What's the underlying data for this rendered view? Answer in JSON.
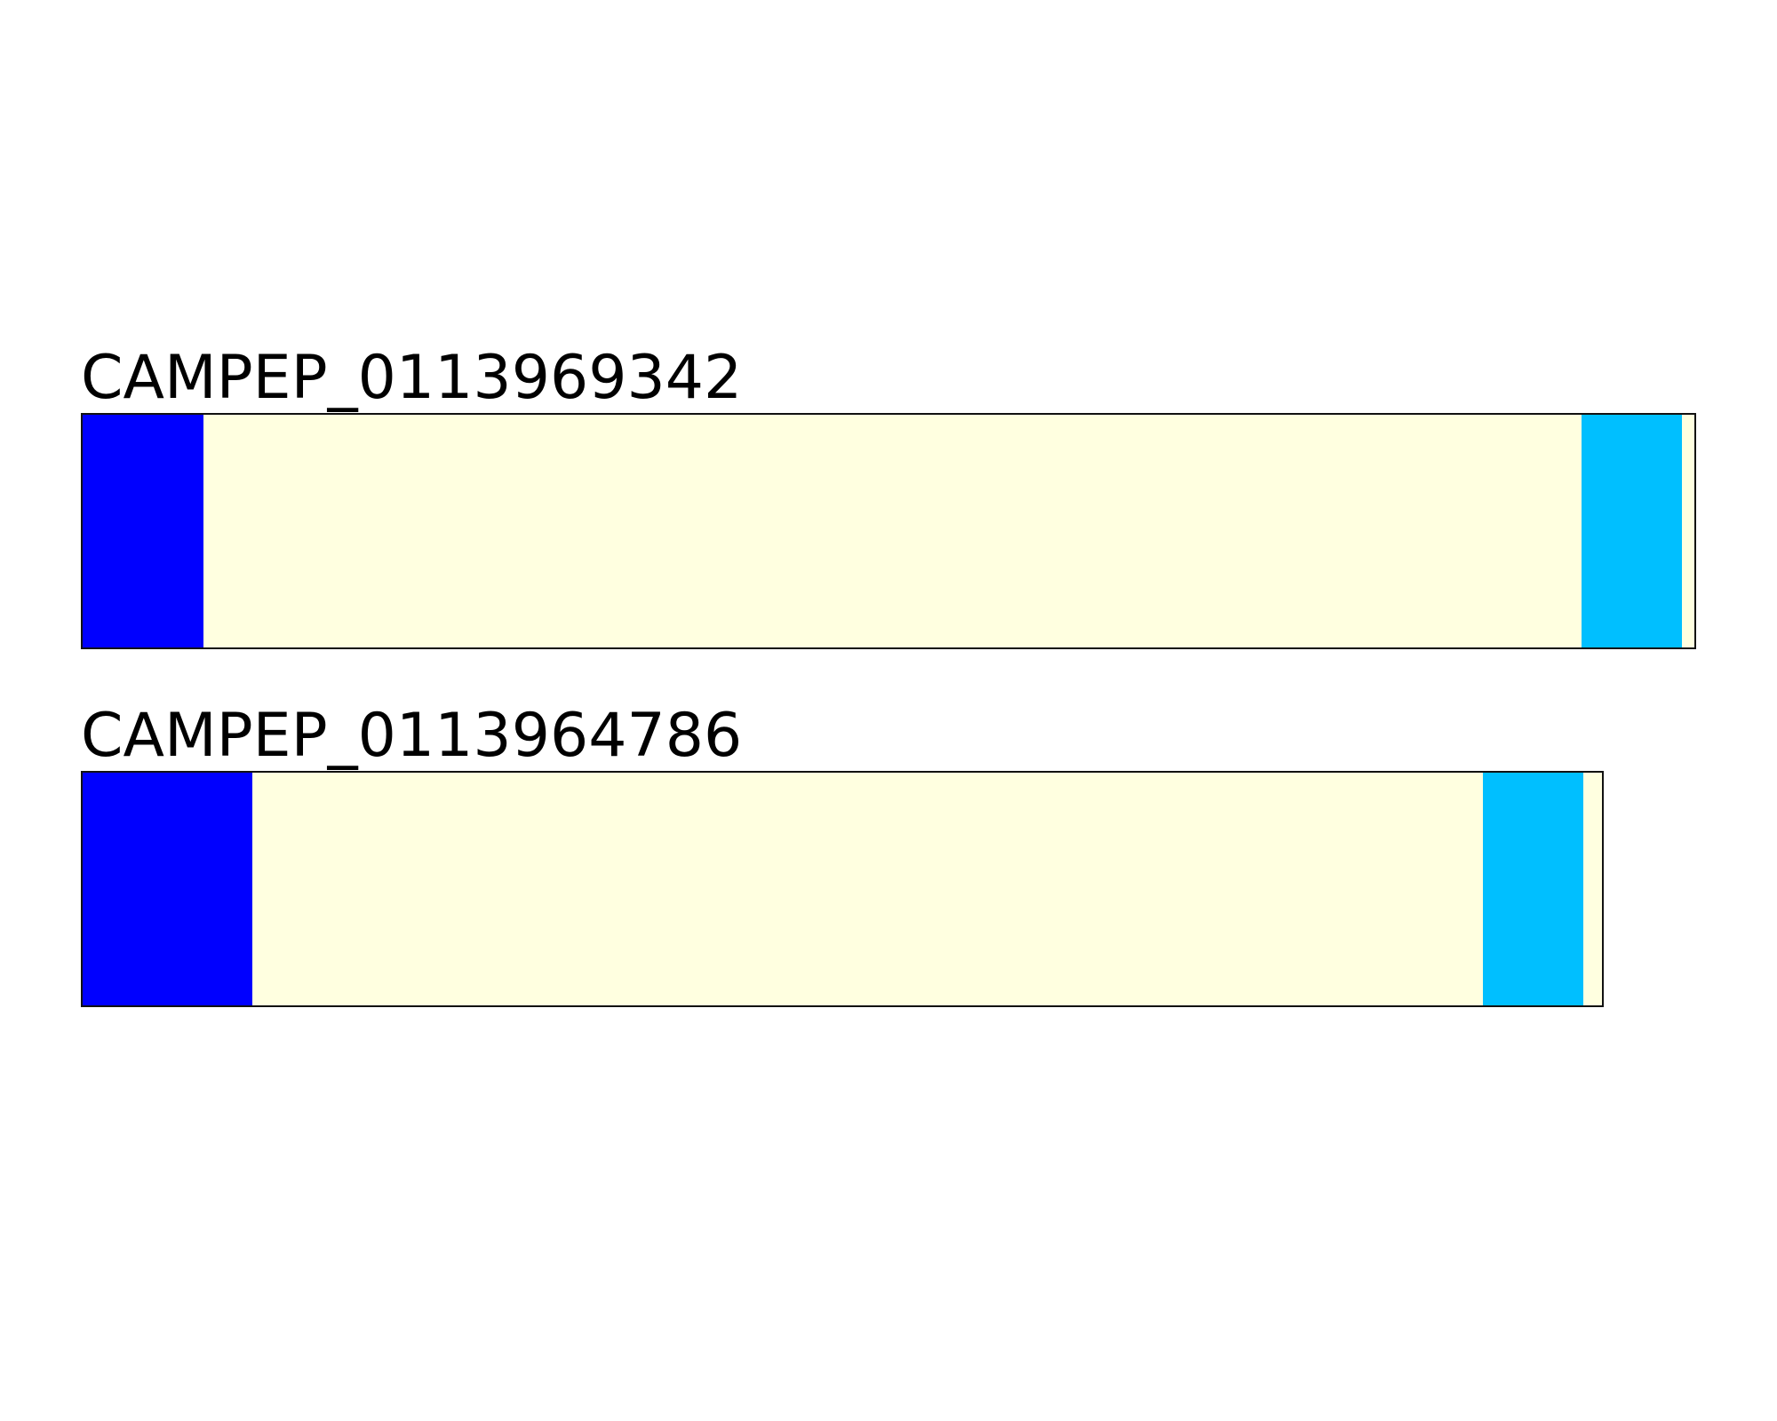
{
  "colors": {
    "signal": "#0000ff",
    "body": "#ffffe0",
    "tail": "#00bfff"
  },
  "tracks": [
    {
      "label": "CAMPEP_0113969342",
      "length": 1000,
      "segments": [
        {
          "start": 0,
          "end": 75,
          "color": "#0000ff"
        },
        {
          "start": 75,
          "end": 928,
          "color": "#ffffe0"
        },
        {
          "start": 928,
          "end": 990,
          "color": "#00bfff"
        },
        {
          "start": 990,
          "end": 1000,
          "color": "#ffffe0"
        }
      ]
    },
    {
      "label": "CAMPEP_0113964786",
      "length": 943,
      "segments": [
        {
          "start": 0,
          "end": 105,
          "color": "#0000ff"
        },
        {
          "start": 105,
          "end": 867,
          "color": "#ffffe0"
        },
        {
          "start": 867,
          "end": 929,
          "color": "#00bfff"
        },
        {
          "start": 929,
          "end": 943,
          "color": "#ffffe0"
        }
      ]
    }
  ]
}
